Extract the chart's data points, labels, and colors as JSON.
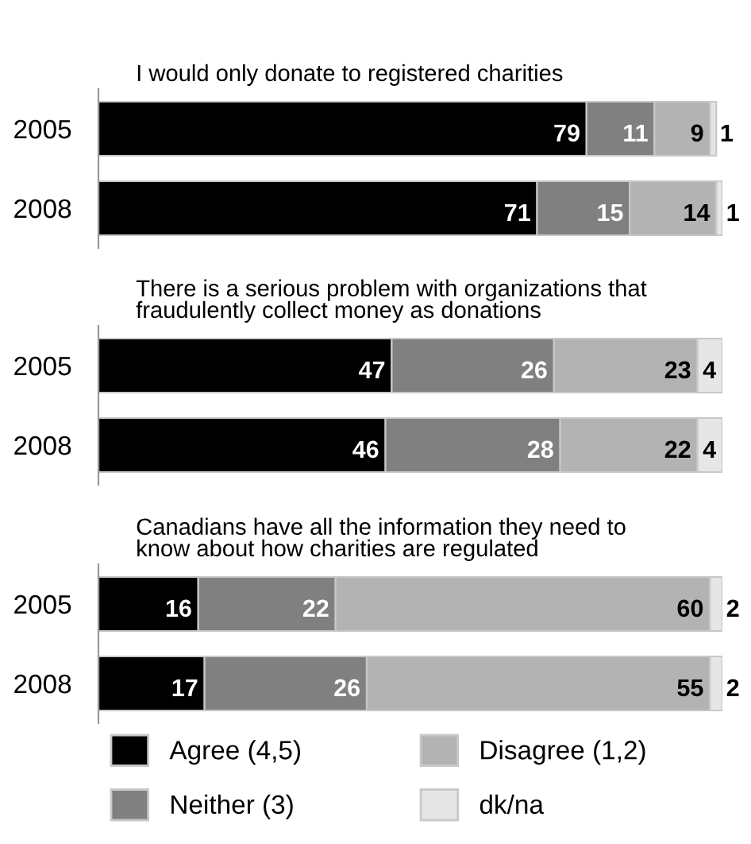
{
  "chart_data": [
    {
      "type": "bar",
      "orientation": "horizontal",
      "stacked": true,
      "title": "I would only donate to registered charities",
      "categories": [
        "2005",
        "2008"
      ],
      "tick_labels": "y",
      "data_labels": true,
      "legend": false,
      "series": [
        {
          "color": "#000000",
          "values": [
            79,
            71
          ]
        },
        {
          "color": "#808080",
          "values": [
            11,
            15
          ]
        },
        {
          "color": "#b3b3b3",
          "values": [
            9,
            14
          ]
        },
        {
          "color": "#e6e6e6",
          "values": [
            1,
            1
          ]
        }
      ]
    },
    {
      "type": "bar",
      "orientation": "horizontal",
      "stacked": true,
      "title": "There is a serious problem with organizations that\nfraudulently collect money as donations",
      "categories": [
        "2005",
        "2008"
      ],
      "tick_labels": "y",
      "data_labels": true,
      "legend": false,
      "series": [
        {
          "color": "#000000",
          "values": [
            47,
            46
          ]
        },
        {
          "color": "#808080",
          "values": [
            26,
            28
          ]
        },
        {
          "color": "#b3b3b3",
          "values": [
            23,
            22
          ]
        },
        {
          "color": "#e6e6e6",
          "values": [
            4,
            4
          ]
        }
      ]
    },
    {
      "type": "bar",
      "orientation": "horizontal",
      "stacked": true,
      "title": "Canadians have all the information they need to\nknow about how charities are regulated",
      "categories": [
        "2005",
        "2008"
      ],
      "tick_labels": "y",
      "data_labels": true,
      "legend": "bottom",
      "series": [
        {
          "name": "Agree (4,5)",
          "color": "#000000",
          "values": [
            16,
            17
          ]
        },
        {
          "name": "Neither (3)",
          "color": "#808080",
          "values": [
            22,
            26
          ]
        },
        {
          "name": "Disagree (1,2)",
          "color": "#b3b3b3",
          "values": [
            60,
            55
          ]
        },
        {
          "name": "dk/na",
          "color": "#e6e6e6",
          "values": [
            2,
            2
          ]
        }
      ]
    }
  ]
}
